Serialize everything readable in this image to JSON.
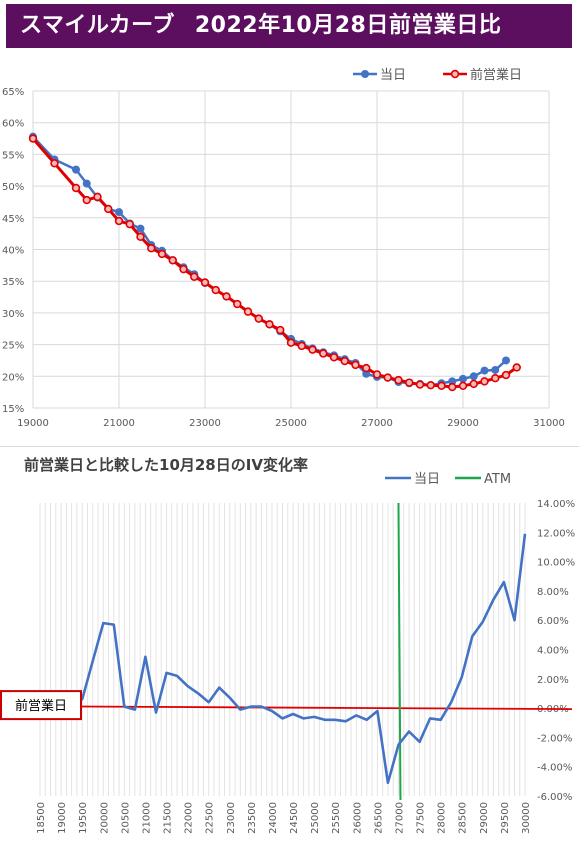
{
  "banner": {
    "title_left": "スマイルカーブ",
    "title_right": "2022年10月28日前営業日比"
  },
  "colors": {
    "banner_bg": "#5b0f5e",
    "today": "#4472c4",
    "prev": "#e00000",
    "atm": "#1fa64a",
    "iv": "#4472c4",
    "zero": "#e00000"
  },
  "chart_data": [
    {
      "type": "line",
      "title": "",
      "xlim": [
        19000,
        31000
      ],
      "ylim": [
        15,
        65
      ],
      "x_ticks": [
        19000,
        21000,
        23000,
        25000,
        27000,
        29000,
        31000
      ],
      "y_ticks": [
        "15%",
        "20%",
        "25%",
        "30%",
        "35%",
        "40%",
        "45%",
        "50%",
        "55%",
        "60%",
        "65%"
      ],
      "legend": [
        "当日",
        "前営業日"
      ],
      "legend_position": "top-right",
      "grid": true,
      "series": [
        {
          "name": "当日",
          "points": [
            [
              19000,
              57.8
            ],
            [
              19500,
              54.2
            ],
            [
              20000,
              52.6
            ],
            [
              20250,
              50.4
            ],
            [
              20500,
              48.2
            ],
            [
              20750,
              46.4
            ],
            [
              21000,
              45.9
            ],
            [
              21250,
              44.1
            ],
            [
              21500,
              43.3
            ],
            [
              21750,
              40.7
            ],
            [
              22000,
              39.8
            ],
            [
              22250,
              38.3
            ],
            [
              22500,
              37.2
            ],
            [
              22750,
              36.1
            ],
            [
              23000,
              34.7
            ],
            [
              23250,
              33.6
            ],
            [
              23500,
              32.6
            ],
            [
              23750,
              31.4
            ],
            [
              24000,
              30.2
            ],
            [
              24250,
              29.1
            ],
            [
              24500,
              28.2
            ],
            [
              24750,
              27.1
            ],
            [
              25000,
              25.9
            ],
            [
              25250,
              25.1
            ],
            [
              25500,
              24.4
            ],
            [
              25750,
              23.8
            ],
            [
              26000,
              23.3
            ],
            [
              26250,
              22.7
            ],
            [
              26500,
              22.1
            ],
            [
              26750,
              20.4
            ],
            [
              27000,
              19.9
            ],
            [
              27250,
              19.8
            ],
            [
              27500,
              19.1
            ],
            [
              27750,
              18.9
            ],
            [
              28000,
              18.8
            ],
            [
              28250,
              18.6
            ],
            [
              28500,
              18.9
            ],
            [
              28750,
              19.2
            ],
            [
              29000,
              19.6
            ],
            [
              29250,
              20.0
            ],
            [
              29500,
              20.9
            ],
            [
              29750,
              21.0
            ],
            [
              30000,
              22.5
            ]
          ]
        },
        {
          "name": "前営業日",
          "points": [
            [
              19000,
              57.5
            ],
            [
              19500,
              53.6
            ],
            [
              20000,
              49.7
            ],
            [
              20250,
              47.8
            ],
            [
              20500,
              48.3
            ],
            [
              20750,
              46.4
            ],
            [
              21000,
              44.5
            ],
            [
              21250,
              44.0
            ],
            [
              21500,
              42.0
            ],
            [
              21750,
              40.2
            ],
            [
              22000,
              39.3
            ],
            [
              22250,
              38.3
            ],
            [
              22500,
              36.9
            ],
            [
              22750,
              35.7
            ],
            [
              23000,
              34.8
            ],
            [
              23250,
              33.6
            ],
            [
              23500,
              32.6
            ],
            [
              23750,
              31.4
            ],
            [
              24000,
              30.2
            ],
            [
              24250,
              29.1
            ],
            [
              24500,
              28.2
            ],
            [
              24750,
              27.3
            ],
            [
              25000,
              25.3
            ],
            [
              25250,
              24.8
            ],
            [
              25500,
              24.2
            ],
            [
              25750,
              23.6
            ],
            [
              26000,
              23.0
            ],
            [
              26250,
              22.4
            ],
            [
              26500,
              21.8
            ],
            [
              26750,
              21.3
            ],
            [
              27000,
              20.3
            ],
            [
              27250,
              19.8
            ],
            [
              27500,
              19.4
            ],
            [
              27750,
              19.0
            ],
            [
              28000,
              18.7
            ],
            [
              28250,
              18.6
            ],
            [
              28500,
              18.5
            ],
            [
              28750,
              18.3
            ],
            [
              29000,
              18.5
            ],
            [
              29250,
              18.8
            ],
            [
              29500,
              19.2
            ],
            [
              29750,
              19.7
            ],
            [
              30000,
              20.2
            ],
            [
              30250,
              21.4
            ]
          ]
        }
      ]
    },
    {
      "type": "line",
      "title": "前営業日と比較した10月28日のIV変化率",
      "ylim": [
        -6,
        14
      ],
      "y_ticks": [
        "-6.00%",
        "-4.00%",
        "-2.00%",
        "0.00%",
        "2.00%",
        "4.00%",
        "6.00%",
        "8.00%",
        "10.00%",
        "12.00%",
        "14.00%"
      ],
      "x_ticks": [
        "18500",
        "19000",
        "19500",
        "20000",
        "20500",
        "21000",
        "21500",
        "22000",
        "22500",
        "23000",
        "23500",
        "24000",
        "24500",
        "25000",
        "25500",
        "26000",
        "26500",
        "27000",
        "27500",
        "28000",
        "28500",
        "29000",
        "29500",
        "30000"
      ],
      "xlim": [
        18500,
        30000
      ],
      "legend": [
        "当日",
        "ATM"
      ],
      "legend_position": "top-right",
      "atm_x": 27000,
      "reference_label": "前営業日",
      "series": [
        {
          "name": "当日",
          "points": [
            [
              19250,
              0.5
            ],
            [
              19500,
              0.6
            ],
            [
              19750,
              3.2
            ],
            [
              20000,
              5.8
            ],
            [
              20250,
              5.7
            ],
            [
              20500,
              0.1
            ],
            [
              20750,
              -0.1
            ],
            [
              21000,
              3.5
            ],
            [
              21250,
              -0.3
            ],
            [
              21500,
              2.4
            ],
            [
              21750,
              2.2
            ],
            [
              22000,
              1.5
            ],
            [
              22250,
              1.0
            ],
            [
              22500,
              0.4
            ],
            [
              22750,
              1.4
            ],
            [
              23000,
              0.7
            ],
            [
              23250,
              -0.1
            ],
            [
              23500,
              0.1
            ],
            [
              23750,
              0.1
            ],
            [
              24000,
              -0.2
            ],
            [
              24250,
              -0.7
            ],
            [
              24500,
              -0.4
            ],
            [
              24750,
              -0.7
            ],
            [
              25000,
              -0.6
            ],
            [
              25250,
              -0.8
            ],
            [
              25500,
              -0.8
            ],
            [
              25750,
              -0.9
            ],
            [
              26000,
              -0.5
            ],
            [
              26250,
              -0.8
            ],
            [
              26500,
              -0.2
            ],
            [
              26750,
              -5.1
            ],
            [
              27000,
              -2.5
            ],
            [
              27250,
              -1.6
            ],
            [
              27500,
              -2.3
            ],
            [
              27750,
              -0.7
            ],
            [
              28000,
              -0.8
            ],
            [
              28250,
              0.4
            ],
            [
              28500,
              2.1
            ],
            [
              28750,
              4.9
            ],
            [
              29000,
              5.9
            ],
            [
              29250,
              7.4
            ],
            [
              29500,
              8.6
            ],
            [
              29750,
              6.0
            ],
            [
              30000,
              11.9
            ]
          ]
        }
      ]
    }
  ]
}
